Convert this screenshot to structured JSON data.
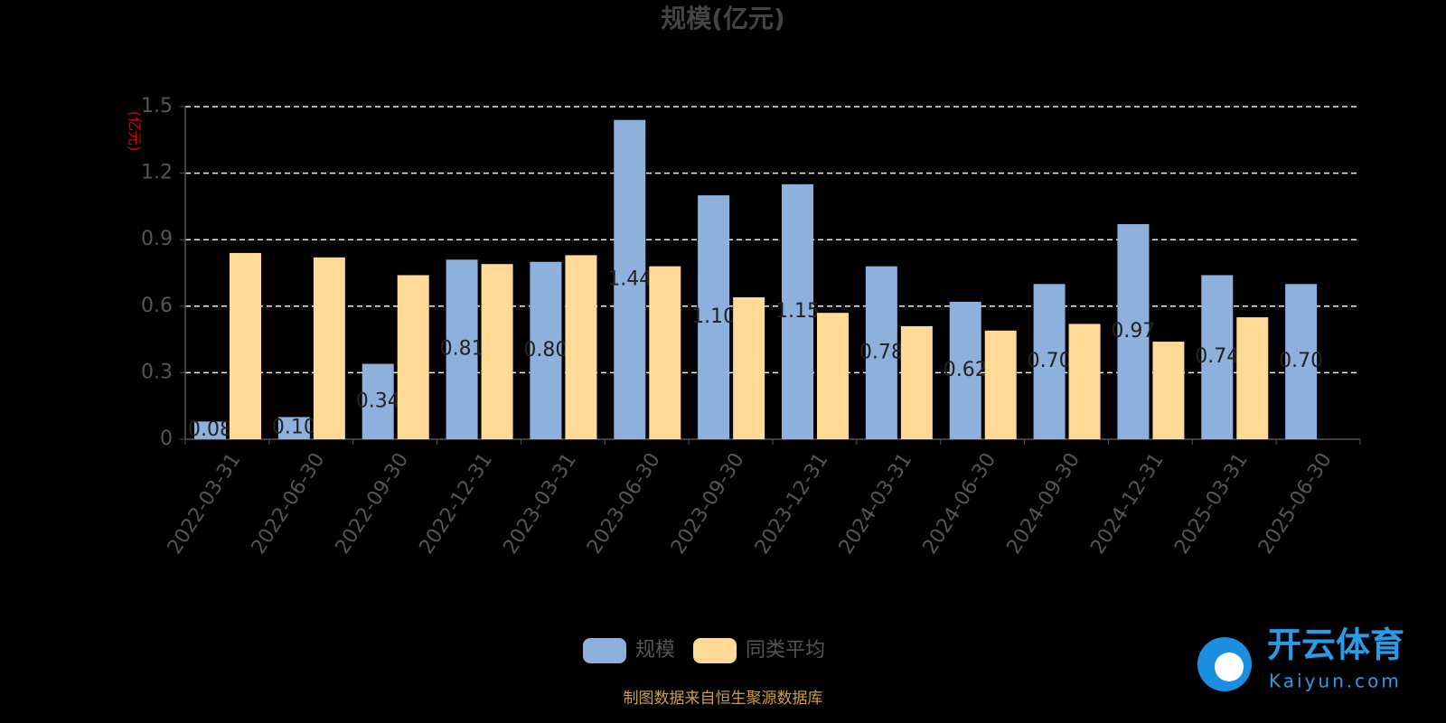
{
  "chart_data": {
    "type": "bar",
    "title": "规模(亿元)",
    "y_label": "(亿元)",
    "categories": [
      "2022-03-31",
      "2022-06-30",
      "2022-09-30",
      "2022-12-31",
      "2023-03-31",
      "2023-06-30",
      "2023-09-30",
      "2023-12-31",
      "2024-03-31",
      "2024-06-30",
      "2024-09-30",
      "2024-12-31",
      "2025-03-31",
      "2025-06-30"
    ],
    "series": [
      {
        "name": "规模",
        "color": "#8eb0dc",
        "values": [
          0.08,
          0.1,
          0.34,
          0.81,
          0.8,
          1.44,
          1.1,
          1.15,
          0.78,
          0.62,
          0.7,
          0.97,
          0.74,
          0.7
        ],
        "value_labels": [
          "0.08",
          "0.10",
          "0.34",
          "0.81",
          "0.80",
          "1.44",
          "1.10",
          "1.15",
          "0.78",
          "0.62",
          "0.70",
          "0.97",
          "0.74",
          "0.70"
        ]
      },
      {
        "name": "同类平均",
        "color": "#ffd996",
        "values": [
          0.84,
          0.82,
          0.74,
          0.79,
          0.83,
          0.78,
          0.64,
          0.57,
          0.51,
          0.49,
          0.52,
          0.44,
          0.55,
          null
        ]
      }
    ],
    "ylim": [
      0,
      1.5
    ],
    "yticks": [
      0,
      0.3,
      0.6,
      0.9,
      1.2,
      1.5
    ],
    "grid": true,
    "legend": "bottom",
    "source": "制图数据来自恒生聚源数据库",
    "watermark": {
      "name": "开云体育",
      "url": "Kaiyun.com"
    }
  }
}
